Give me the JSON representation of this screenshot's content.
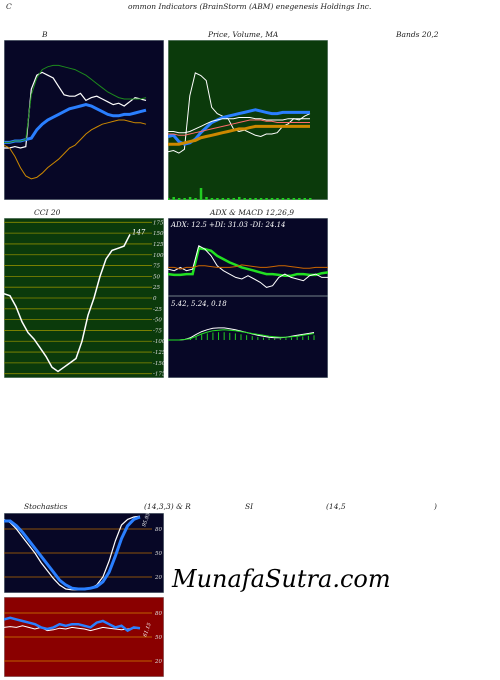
{
  "header": {
    "left": "C",
    "center": "ommon  Indicators (BrainStorm (ABM) enegenesis Holdings Inc."
  },
  "labels": {
    "bb": "B",
    "price_ma": "Price,  Volume,  MA",
    "bands": "Bands 20,2",
    "cci": "CCI 20",
    "adx_macd": "ADX  & MACD 12,26,9",
    "stoch": "Stochastics",
    "stoch_params": "(14,3,3) & R",
    "si": "SI",
    "si_params": "(14,5",
    "si_close": ")"
  },
  "watermark": "MunafaSutra.com",
  "colors": {
    "bb_bg": "#070726",
    "price_bg": "#0b3a0b",
    "cci_bg": "#0b3a0b",
    "adx_bg": "#070726",
    "stoch_bg": "#070726",
    "rsi_bg": "#8a0000"
  },
  "chart_data": [
    {
      "id": "bb",
      "type": "line",
      "title": "B",
      "series": [
        {
          "color": "#ffffff",
          "values": [
            10,
            10,
            11,
            10,
            11,
            52,
            62,
            64,
            62,
            60,
            54,
            48,
            47,
            47,
            49,
            44,
            46,
            47,
            45,
            43,
            41,
            42,
            40,
            43,
            46,
            45,
            44
          ]
        },
        {
          "color": "#2a7fff",
          "values": [
            14,
            14,
            15,
            15,
            16,
            17,
            23,
            27,
            30,
            32,
            34,
            36,
            38,
            39,
            40,
            41,
            40,
            38,
            36,
            34,
            33,
            33,
            34,
            34,
            35,
            36,
            37
          ]
        },
        {
          "color": "#1d8a1d",
          "values": [
            14,
            14,
            15,
            15,
            16,
            48,
            60,
            66,
            68,
            69,
            69,
            68,
            67,
            66,
            64,
            62,
            59,
            56,
            53,
            50,
            48,
            46,
            45,
            45,
            45,
            45,
            46
          ]
        },
        {
          "color": "#cc8800",
          "values": [
            12,
            10,
            4,
            -4,
            -10,
            -12,
            -11,
            -8,
            -4,
            -1,
            2,
            6,
            10,
            12,
            16,
            20,
            23,
            25,
            27,
            28,
            29,
            30,
            30,
            29,
            28,
            28,
            27
          ]
        }
      ],
      "ylim": [
        -20,
        80
      ]
    },
    {
      "id": "price",
      "type": "line",
      "title": "Price,  Volume,  MA",
      "series": [
        {
          "color": "#ffffff",
          "values": [
            20,
            21,
            19,
            22,
            64,
            82,
            80,
            76,
            55,
            50,
            48,
            46,
            38,
            36,
            37,
            35,
            33,
            32,
            34,
            34,
            35,
            40,
            42,
            46,
            45,
            48,
            50
          ]
        },
        {
          "color": "#2a7fff",
          "values": [
            32,
            33,
            28,
            26,
            27,
            30,
            35,
            39,
            43,
            45,
            47,
            48,
            49,
            50,
            51,
            52,
            53,
            52,
            51,
            50,
            50,
            51,
            51,
            51,
            51,
            51,
            51
          ]
        },
        {
          "color": "#cc8800",
          "values": [
            26,
            26,
            26,
            27,
            28,
            29,
            31,
            32,
            33,
            34,
            35,
            36,
            37,
            38,
            38,
            39,
            40,
            40,
            40,
            40,
            40,
            40,
            40,
            40,
            40,
            40,
            40
          ]
        },
        {
          "color": "#ff6b6b",
          "values": [
            34,
            34,
            33,
            33,
            34,
            35,
            36,
            37,
            38,
            39,
            40,
            41,
            42,
            43,
            44,
            45,
            45,
            45,
            44,
            44,
            43,
            43,
            43,
            43,
            43,
            43,
            43
          ]
        },
        {
          "color": "#ffffff",
          "values": [
            36,
            36,
            35,
            35,
            36,
            38,
            40,
            42,
            44,
            45,
            46,
            46,
            46,
            47,
            47,
            47,
            46,
            46,
            45,
            45,
            45,
            45,
            46,
            46,
            46,
            46,
            46
          ]
        }
      ],
      "volume": [
        2,
        3,
        2,
        2,
        3,
        2,
        12,
        3,
        2,
        2,
        2,
        2,
        2,
        3,
        2,
        2,
        2,
        2,
        2,
        2,
        2,
        2,
        2,
        2,
        2,
        2,
        2
      ],
      "ylim": [
        -10,
        100
      ]
    },
    {
      "id": "cci",
      "type": "line",
      "title": "CCI 20",
      "ticks": [
        "175",
        "150",
        "125",
        "100",
        "75",
        "50",
        "25",
        "0",
        "-25",
        "-50",
        "-75",
        "-100",
        "-125",
        "-150",
        "-175"
      ],
      "last_label": "147",
      "series": [
        {
          "color": "#ffffff",
          "values": [
            10,
            5,
            -20,
            -55,
            -80,
            -95,
            -115,
            -135,
            -160,
            -170,
            -160,
            -150,
            -140,
            -100,
            -40,
            0,
            50,
            90,
            110,
            115,
            120,
            147
          ]
        }
      ],
      "ylim": [
        -185,
        185
      ]
    },
    {
      "id": "adx",
      "type": "line",
      "title": "ADX  & MACD 12,26,9",
      "adx_text": "ADX: 12.5  +DI: 31.03 -DI: 24.14",
      "macd_text": "5.42,  5.24,  0.18",
      "series": [
        {
          "color": "#22e022",
          "values": [
            14,
            13,
            13,
            14,
            14,
            45,
            44,
            42,
            36,
            32,
            28,
            25,
            22,
            20,
            18,
            16,
            14,
            14,
            13,
            12,
            12,
            14,
            14,
            13,
            13,
            15,
            16
          ]
        },
        {
          "color": "#ffffff",
          "values": [
            20,
            18,
            22,
            18,
            20,
            48,
            44,
            36,
            24,
            18,
            14,
            10,
            8,
            12,
            8,
            4,
            -2,
            0,
            10,
            14,
            10,
            8,
            6,
            12,
            14,
            10,
            10
          ]
        },
        {
          "color": "#cc6600",
          "values": [
            22,
            22,
            20,
            22,
            22,
            24,
            24,
            23,
            22,
            22,
            22,
            23,
            25,
            24,
            23,
            22,
            22,
            23,
            24,
            24,
            23,
            22,
            21,
            21,
            22,
            22,
            22
          ]
        }
      ],
      "macd_series": [
        {
          "color": "#ffffff",
          "values": [
            0,
            0,
            0,
            0.1,
            0.5,
            1.2,
            1.8,
            2.2,
            2.5,
            2.6,
            2.6,
            2.4,
            2.2,
            1.9,
            1.6,
            1.3,
            1.0,
            0.8,
            0.6,
            0.5,
            0.5,
            0.6,
            0.8,
            1.0,
            1.2,
            1.4,
            1.6
          ]
        },
        {
          "color": "#22e022",
          "values": [
            0,
            0,
            0,
            0.1,
            0.3,
            0.8,
            1.3,
            1.7,
            2.0,
            2.1,
            2.2,
            2.1,
            2.0,
            1.8,
            1.6,
            1.4,
            1.2,
            1.0,
            0.8,
            0.7,
            0.6,
            0.6,
            0.7,
            0.8,
            1.0,
            1.2,
            1.4
          ]
        }
      ],
      "ylim": [
        -10,
        55
      ]
    },
    {
      "id": "stoch",
      "type": "line",
      "title": "Stochastics (14,3,3)",
      "ticks": [
        "80",
        "50",
        "20"
      ],
      "last_label": "95.95",
      "series": [
        {
          "color": "#ffffff",
          "values": [
            92,
            88,
            80,
            70,
            60,
            50,
            38,
            28,
            18,
            10,
            5,
            4,
            4,
            4,
            6,
            10,
            20,
            40,
            65,
            85,
            92,
            95,
            96
          ]
        },
        {
          "color": "#2a7fff",
          "values": [
            90,
            90,
            84,
            76,
            66,
            56,
            46,
            36,
            26,
            16,
            10,
            6,
            5,
            5,
            6,
            8,
            14,
            26,
            46,
            68,
            84,
            92,
            95
          ]
        }
      ],
      "ylim": [
        0,
        100
      ]
    },
    {
      "id": "rsi",
      "type": "line",
      "title": "RSI (14,5)",
      "ticks": [
        "80",
        "50",
        "20"
      ],
      "last_label": "61.15",
      "series": [
        {
          "color": "#ffffff",
          "values": [
            62,
            63,
            62,
            64,
            62,
            60,
            62,
            58,
            59,
            61,
            60,
            62,
            61,
            60,
            58,
            60,
            62,
            61,
            60,
            59,
            60,
            61,
            61
          ]
        },
        {
          "color": "#2a7fff",
          "values": [
            72,
            74,
            72,
            70,
            68,
            66,
            62,
            60,
            62,
            66,
            64,
            66,
            66,
            64,
            62,
            68,
            70,
            66,
            62,
            64,
            58,
            62,
            61
          ]
        }
      ],
      "ylim": [
        0,
        100
      ]
    }
  ]
}
